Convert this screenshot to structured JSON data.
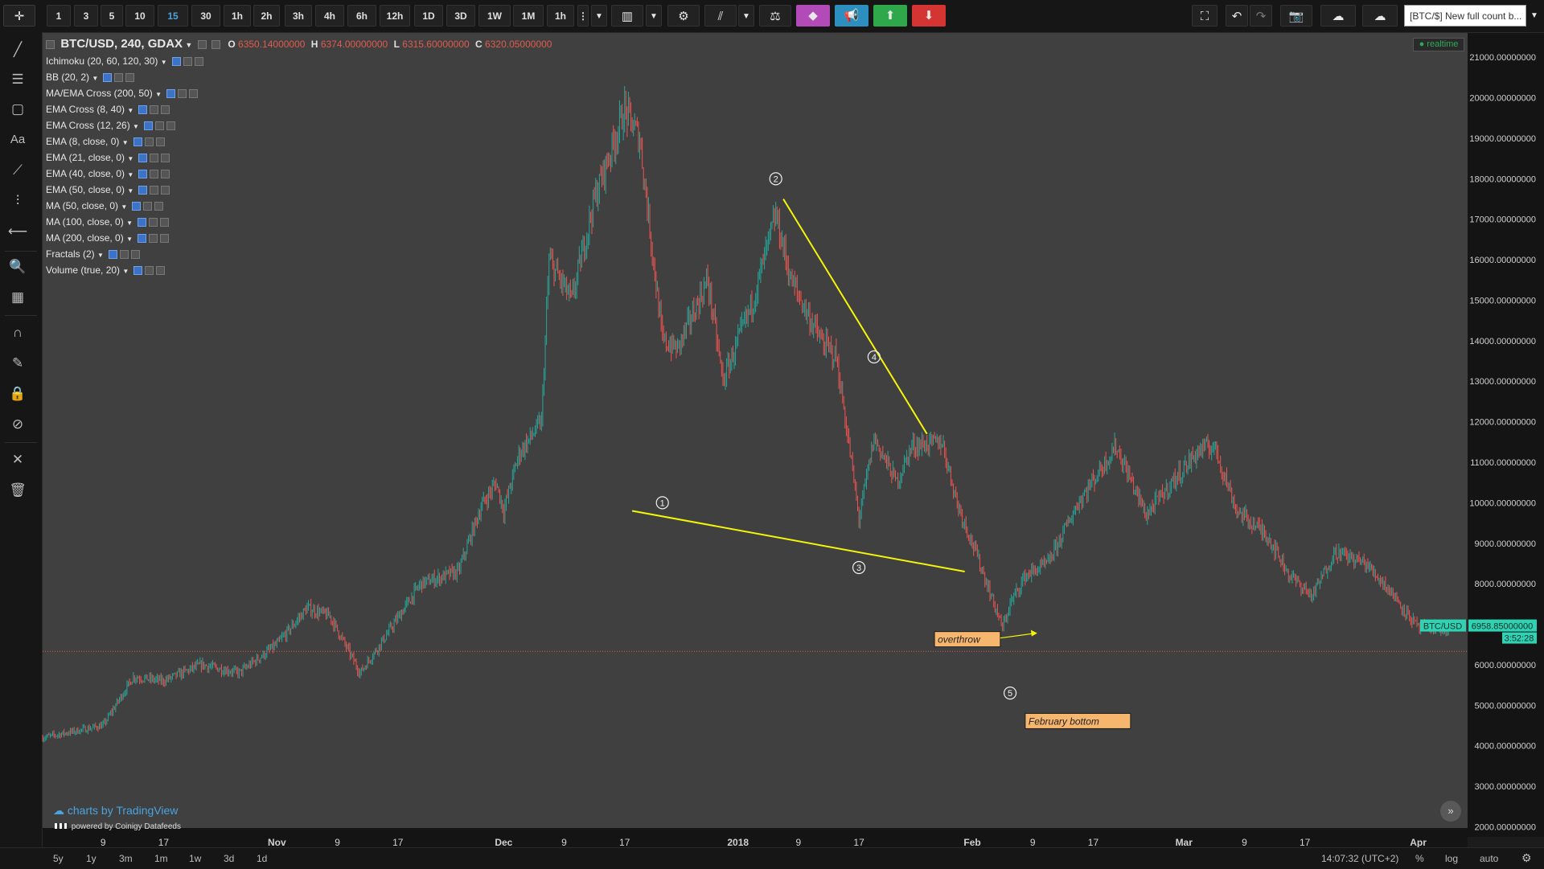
{
  "toolbar": {
    "intervals": [
      "1",
      "3",
      "5",
      "10",
      "15",
      "30",
      "1h",
      "2h",
      "3h",
      "4h",
      "6h",
      "12h",
      "1D",
      "3D",
      "1W",
      "1M",
      "1h"
    ],
    "active_interval": "15",
    "symbol_search": "[BTC/$] New full count b..."
  },
  "legend": {
    "symbol": "BTC/USD, 240, GDAX",
    "o_label": "O",
    "o_value": "6350.14000000",
    "h_label": "H",
    "h_value": "6374.00000000",
    "l_label": "L",
    "l_value": "6315.60000000",
    "c_label": "C",
    "c_value": "6320.05000000",
    "indicators": [
      "Ichimoku (20, 60, 120, 30)",
      "BB (20, 2)",
      "MA/EMA Cross (200, 50)",
      "EMA Cross (8, 40)",
      "EMA Cross (12, 26)",
      "EMA (8, close, 0)",
      "EMA (21, close, 0)",
      "EMA (40, close, 0)",
      "EMA (50, close, 0)",
      "MA (50, close, 0)",
      "MA (100, close, 0)",
      "MA (200, close, 0)",
      "Fractals (2)",
      "Volume (true, 20)"
    ]
  },
  "realtime_badge": "realtime",
  "branding": {
    "tradingview": "charts by TradingView",
    "coinigy": "powered by Coinigy Datafeeds"
  },
  "bottom": {
    "ranges": [
      "5y",
      "1y",
      "3m",
      "1m",
      "1w",
      "3d",
      "1d"
    ],
    "clock": "14:07:32 (UTC+2)",
    "pct": "%",
    "log": "log",
    "auto": "auto"
  },
  "colors": {
    "up": "#26a69a",
    "down": "#ef5350",
    "trendline": "#f5f50a",
    "annotation_fill": "#f7b66e",
    "price_label": "#2fd3b3",
    "last_price_line": "#e05b4b"
  },
  "chart_data": {
    "type": "candlestick",
    "interval": "240",
    "symbol": "BTC/USD",
    "x_ticks": [
      "9",
      "17",
      "Nov",
      "9",
      "17",
      "Dec",
      "9",
      "17",
      "2018",
      "9",
      "17",
      "Feb",
      "9",
      "17",
      "Mar",
      "9",
      "17",
      "Apr"
    ],
    "y_ticks": [
      "2000.00000000",
      "3000.00000000",
      "4000.00000000",
      "5000.00000000",
      "6000.00000000",
      "7000.00000000",
      "8000.00000000",
      "9000.00000000",
      "10000.00000000",
      "11000.00000000",
      "12000.00000000",
      "13000.00000000",
      "14000.00000000",
      "15000.00000000",
      "16000.00000000",
      "17000.00000000",
      "18000.00000000",
      "19000.00000000",
      "20000.00000000",
      "21000.00000000"
    ],
    "ylim": [
      1750,
      21600
    ],
    "price_path": [
      [
        "2017-10-01",
        4200
      ],
      [
        "2017-10-09",
        4500
      ],
      [
        "2017-10-13",
        5700
      ],
      [
        "2017-10-17",
        5600
      ],
      [
        "2017-10-22",
        6000
      ],
      [
        "2017-10-27",
        5800
      ],
      [
        "2017-11-01",
        6500
      ],
      [
        "2017-11-05",
        7400
      ],
      [
        "2017-11-08",
        7200
      ],
      [
        "2017-11-12",
        5800
      ],
      [
        "2017-11-15",
        6600
      ],
      [
        "2017-11-20",
        8000
      ],
      [
        "2017-11-25",
        8300
      ],
      [
        "2017-11-28",
        9900
      ],
      [
        "2017-11-30",
        10500
      ],
      [
        "2017-12-01",
        9800
      ],
      [
        "2017-12-03",
        11200
      ],
      [
        "2017-12-06",
        12000
      ],
      [
        "2017-12-07",
        16000
      ],
      [
        "2017-12-10",
        15000
      ],
      [
        "2017-12-13",
        17500
      ],
      [
        "2017-12-17",
        19700
      ],
      [
        "2017-12-19",
        19000
      ],
      [
        "2017-12-22",
        14000
      ],
      [
        "2017-12-24",
        13800
      ],
      [
        "2017-12-28",
        15500
      ],
      [
        "2017-12-30",
        13000
      ],
      [
        "2018-01-03",
        15000
      ],
      [
        "2018-01-06",
        17100
      ],
      [
        "2018-01-08",
        15500
      ],
      [
        "2018-01-12",
        14000
      ],
      [
        "2018-01-14",
        13600
      ],
      [
        "2018-01-16",
        11000
      ],
      [
        "2018-01-17",
        9600
      ],
      [
        "2018-01-19",
        11600
      ],
      [
        "2018-01-22",
        10500
      ],
      [
        "2018-01-24",
        11400
      ],
      [
        "2018-01-28",
        11500
      ],
      [
        "2018-01-30",
        10000
      ],
      [
        "2018-02-02",
        8500
      ],
      [
        "2018-02-05",
        6900
      ],
      [
        "2018-02-06",
        7500
      ],
      [
        "2018-02-08",
        8200
      ],
      [
        "2018-02-11",
        8500
      ],
      [
        "2018-02-15",
        10000
      ],
      [
        "2018-02-20",
        11400
      ],
      [
        "2018-02-24",
        9700
      ],
      [
        "2018-02-27",
        10400
      ],
      [
        "2018-03-03",
        11300
      ],
      [
        "2018-03-05",
        11400
      ],
      [
        "2018-03-08",
        9800
      ],
      [
        "2018-03-12",
        9200
      ],
      [
        "2018-03-15",
        8200
      ],
      [
        "2018-03-18",
        7700
      ],
      [
        "2018-03-21",
        8800
      ],
      [
        "2018-03-25",
        8500
      ],
      [
        "2018-03-28",
        7900
      ],
      [
        "2018-04-01",
        6900
      ],
      [
        "2018-04-04",
        6900
      ],
      [
        "2018-04-05",
        6800
      ]
    ],
    "last_price": {
      "label": "BTC/USD",
      "price": "6958.85000000",
      "countdown": "3:52:28"
    },
    "horizontal_line_price": 6330,
    "trendlines": [
      {
        "from": [
          "2017-12-18",
          9800
        ],
        "to": [
          "2018-01-31",
          8300
        ]
      },
      {
        "from": [
          "2018-01-07",
          17500
        ],
        "to": [
          "2018-01-26",
          11700
        ]
      }
    ],
    "wave_labels": [
      {
        "label": "1",
        "date": "2017-12-22",
        "price": 10000
      },
      {
        "label": "2",
        "date": "2018-01-06",
        "price": 18000
      },
      {
        "label": "3",
        "date": "2018-01-17",
        "price": 8400
      },
      {
        "label": "4",
        "date": "2018-01-19",
        "price": 13600
      },
      {
        "label": "5",
        "date": "2018-02-06",
        "price": 5300
      }
    ],
    "annotations": [
      {
        "text": "overthrow",
        "date": "2018-01-27",
        "price": 6620
      },
      {
        "text": "February bottom",
        "date": "2018-02-08",
        "price": 4600
      }
    ]
  }
}
